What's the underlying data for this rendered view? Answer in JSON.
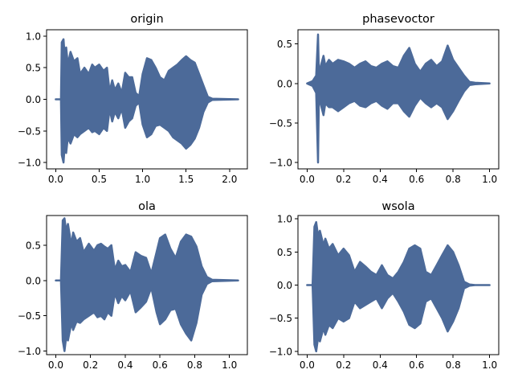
{
  "figure": {
    "background": "#ffffff"
  },
  "chart_data": [
    {
      "type": "line",
      "title": "origin",
      "xlabel": "",
      "ylabel": "",
      "xlim": [
        -0.105,
        2.205
      ],
      "ylim": [
        -1.1,
        1.1
      ],
      "x_ticks": [
        0.0,
        0.5,
        1.0,
        1.5,
        2.0
      ],
      "x_tick_labels": [
        "0.0",
        "0.5",
        "1.0",
        "1.5",
        "2.0"
      ],
      "y_ticks": [
        -1.0,
        -0.5,
        0.0,
        0.5,
        1.0
      ],
      "y_tick_labels": [
        "−1.0",
        "−0.5",
        "0.0",
        "0.5",
        "1.0"
      ],
      "grid": false,
      "color": "#4c6a99",
      "series": [
        {
          "x": [
            0.0,
            0.06,
            0.07,
            0.09,
            0.1,
            0.12,
            0.14,
            0.17,
            0.21,
            0.25,
            0.28,
            0.33,
            0.38,
            0.42,
            0.45,
            0.5,
            0.55,
            0.59,
            0.62,
            0.65,
            0.68,
            0.72,
            0.76,
            0.8,
            0.84,
            0.88,
            0.92,
            0.96,
            1.0,
            1.05,
            1.1,
            1.15,
            1.2,
            1.25,
            1.3,
            1.35,
            1.4,
            1.45,
            1.5,
            1.55,
            1.6,
            1.65,
            1.7,
            1.75,
            1.8,
            2.1
          ],
          "upper": [
            0.0,
            0.0,
            0.9,
            0.95,
            0.75,
            0.82,
            0.55,
            0.75,
            0.6,
            0.65,
            0.4,
            0.5,
            0.4,
            0.55,
            0.5,
            0.55,
            0.45,
            0.5,
            0.12,
            0.3,
            0.15,
            0.25,
            0.1,
            0.42,
            0.35,
            0.35,
            0.1,
            0.05,
            0.4,
            0.65,
            0.62,
            0.5,
            0.35,
            0.3,
            0.45,
            0.5,
            0.55,
            0.62,
            0.68,
            0.62,
            0.58,
            0.4,
            0.22,
            0.04,
            0.01,
            0.0
          ],
          "lower": [
            0.0,
            0.0,
            -0.88,
            -1.0,
            -0.8,
            -0.85,
            -0.6,
            -0.7,
            -0.55,
            -0.6,
            -0.55,
            -0.5,
            -0.45,
            -0.52,
            -0.5,
            -0.55,
            -0.45,
            -0.5,
            -0.15,
            -0.35,
            -0.2,
            -0.3,
            -0.15,
            -0.45,
            -0.35,
            -0.3,
            -0.1,
            -0.05,
            -0.4,
            -0.6,
            -0.55,
            -0.42,
            -0.4,
            -0.45,
            -0.5,
            -0.6,
            -0.65,
            -0.7,
            -0.78,
            -0.72,
            -0.62,
            -0.45,
            -0.2,
            -0.05,
            -0.01,
            0.0
          ]
        }
      ]
    },
    {
      "type": "line",
      "title": "phasevoctor",
      "xlabel": "",
      "ylabel": "",
      "xlim": [
        -0.05,
        1.05
      ],
      "ylim": [
        -1.08,
        0.68
      ],
      "x_ticks": [
        0.0,
        0.2,
        0.4,
        0.6,
        0.8,
        1.0
      ],
      "x_tick_labels": [
        "0.0",
        "0.2",
        "0.4",
        "0.6",
        "0.8",
        "1.0"
      ],
      "y_ticks": [
        -1.0,
        -0.5,
        0.0,
        0.5
      ],
      "y_tick_labels": [
        "−1.0",
        "−0.5",
        "0.0",
        "0.5"
      ],
      "grid": false,
      "color": "#4c6a99",
      "series": [
        {
          "x": [
            0.0,
            0.03,
            0.05,
            0.06,
            0.065,
            0.07,
            0.09,
            0.1,
            0.12,
            0.14,
            0.17,
            0.2,
            0.23,
            0.26,
            0.29,
            0.32,
            0.35,
            0.38,
            0.41,
            0.44,
            0.47,
            0.5,
            0.53,
            0.56,
            0.59,
            0.62,
            0.65,
            0.68,
            0.71,
            0.74,
            0.77,
            0.8,
            0.83,
            0.86,
            0.89,
            0.92,
            1.0
          ],
          "upper": [
            0.0,
            0.03,
            0.1,
            0.62,
            0.1,
            0.18,
            0.35,
            0.22,
            0.3,
            0.25,
            0.3,
            0.28,
            0.25,
            0.2,
            0.25,
            0.28,
            0.22,
            0.2,
            0.25,
            0.28,
            0.22,
            0.2,
            0.35,
            0.45,
            0.25,
            0.15,
            0.25,
            0.3,
            0.22,
            0.28,
            0.48,
            0.3,
            0.2,
            0.1,
            0.02,
            0.01,
            0.0
          ],
          "lower": [
            0.0,
            -0.03,
            -0.12,
            -1.0,
            -0.12,
            -0.22,
            -0.4,
            -0.25,
            -0.3,
            -0.3,
            -0.35,
            -0.3,
            -0.25,
            -0.22,
            -0.28,
            -0.3,
            -0.25,
            -0.22,
            -0.28,
            -0.32,
            -0.25,
            -0.25,
            -0.35,
            -0.42,
            -0.28,
            -0.18,
            -0.25,
            -0.3,
            -0.25,
            -0.3,
            -0.45,
            -0.35,
            -0.22,
            -0.1,
            -0.02,
            -0.01,
            0.0
          ]
        }
      ]
    },
    {
      "type": "line",
      "title": "ola",
      "xlabel": "",
      "ylabel": "",
      "xlim": [
        -0.053,
        1.103
      ],
      "ylim": [
        -1.05,
        0.92
      ],
      "x_ticks": [
        0.0,
        0.2,
        0.4,
        0.6,
        0.8,
        1.0
      ],
      "x_tick_labels": [
        "0.0",
        "0.2",
        "0.4",
        "0.6",
        "0.8",
        "1.0"
      ],
      "y_ticks": [
        -1.0,
        -0.5,
        0.0,
        0.5
      ],
      "y_tick_labels": [
        "−1.0",
        "−0.5",
        "0.0",
        "0.5"
      ],
      "grid": false,
      "color": "#4c6a99",
      "series": [
        {
          "x": [
            0.0,
            0.03,
            0.04,
            0.05,
            0.06,
            0.07,
            0.09,
            0.1,
            0.12,
            0.14,
            0.16,
            0.19,
            0.22,
            0.24,
            0.26,
            0.28,
            0.3,
            0.32,
            0.34,
            0.36,
            0.38,
            0.4,
            0.43,
            0.46,
            0.49,
            0.52,
            0.55,
            0.58,
            0.6,
            0.63,
            0.66,
            0.69,
            0.72,
            0.75,
            0.78,
            0.81,
            0.84,
            0.87,
            0.9,
            1.05
          ],
          "upper": [
            0.0,
            0.0,
            0.85,
            0.88,
            0.7,
            0.8,
            0.5,
            0.68,
            0.55,
            0.6,
            0.4,
            0.52,
            0.42,
            0.5,
            0.52,
            0.48,
            0.45,
            0.5,
            0.15,
            0.28,
            0.2,
            0.22,
            0.12,
            0.4,
            0.35,
            0.32,
            0.1,
            0.4,
            0.6,
            0.65,
            0.45,
            0.32,
            0.55,
            0.65,
            0.62,
            0.48,
            0.2,
            0.05,
            0.01,
            0.0
          ],
          "lower": [
            0.0,
            0.0,
            -0.85,
            -1.0,
            -0.8,
            -0.85,
            -0.6,
            -0.7,
            -0.58,
            -0.6,
            -0.55,
            -0.5,
            -0.45,
            -0.52,
            -0.5,
            -0.55,
            -0.45,
            -0.5,
            -0.18,
            -0.32,
            -0.22,
            -0.28,
            -0.15,
            -0.45,
            -0.38,
            -0.3,
            -0.1,
            -0.45,
            -0.62,
            -0.55,
            -0.42,
            -0.4,
            -0.62,
            -0.75,
            -0.85,
            -0.6,
            -0.2,
            -0.05,
            -0.01,
            0.0
          ]
        }
      ]
    },
    {
      "type": "line",
      "title": "wsola",
      "xlabel": "",
      "ylabel": "",
      "xlim": [
        -0.05,
        1.05
      ],
      "ylim": [
        -1.05,
        1.05
      ],
      "x_ticks": [
        0.0,
        0.2,
        0.4,
        0.6,
        0.8,
        1.0
      ],
      "x_tick_labels": [
        "0.0",
        "0.2",
        "0.4",
        "0.6",
        "0.8",
        "1.0"
      ],
      "y_ticks": [
        -1.0,
        -0.5,
        0.0,
        0.5,
        1.0
      ],
      "y_tick_labels": [
        "−1.0",
        "−0.5",
        "0.0",
        "0.5",
        "1.0"
      ],
      "grid": false,
      "color": "#4c6a99",
      "series": [
        {
          "x": [
            0.0,
            0.03,
            0.04,
            0.05,
            0.06,
            0.07,
            0.09,
            0.1,
            0.12,
            0.14,
            0.17,
            0.2,
            0.23,
            0.26,
            0.29,
            0.32,
            0.35,
            0.38,
            0.41,
            0.44,
            0.47,
            0.5,
            0.53,
            0.56,
            0.59,
            0.62,
            0.65,
            0.68,
            0.71,
            0.74,
            0.77,
            0.8,
            0.83,
            0.86,
            0.89,
            0.92,
            1.0
          ],
          "upper": [
            0.0,
            0.0,
            0.88,
            0.95,
            0.75,
            0.82,
            0.6,
            0.7,
            0.55,
            0.62,
            0.45,
            0.55,
            0.45,
            0.2,
            0.35,
            0.28,
            0.2,
            0.15,
            0.3,
            0.15,
            0.1,
            0.2,
            0.35,
            0.55,
            0.6,
            0.55,
            0.2,
            0.15,
            0.3,
            0.45,
            0.6,
            0.5,
            0.3,
            0.05,
            0.01,
            0.0,
            0.0
          ],
          "lower": [
            0.0,
            0.0,
            -0.9,
            -1.0,
            -0.8,
            -0.85,
            -0.65,
            -0.75,
            -0.6,
            -0.65,
            -0.5,
            -0.55,
            -0.5,
            -0.25,
            -0.35,
            -0.3,
            -0.25,
            -0.2,
            -0.35,
            -0.2,
            -0.12,
            -0.25,
            -0.4,
            -0.6,
            -0.65,
            -0.58,
            -0.25,
            -0.2,
            -0.35,
            -0.5,
            -0.7,
            -0.55,
            -0.35,
            -0.05,
            -0.01,
            0.0,
            0.0
          ]
        }
      ]
    }
  ]
}
